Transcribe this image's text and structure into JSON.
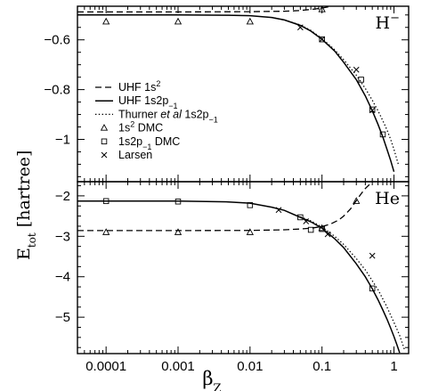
{
  "chart_data": [
    {
      "panel": "H-",
      "label": {
        "text": "H",
        "sup": "−"
      },
      "type": "line",
      "xscale": "log",
      "xlim": [
        4e-05,
        1.6
      ],
      "ylim": [
        -1.17,
        -0.465
      ],
      "yticks": [
        -0.6,
        -0.8,
        -1.0
      ],
      "ytick_labels": [
        "−0.6",
        "−0.8",
        "−1"
      ],
      "series": [
        {
          "name": "UHF 1s²",
          "style": "dashed",
          "x": [
            4e-05,
            0.0001,
            0.001,
            0.01,
            0.03,
            0.05,
            0.08,
            0.1,
            0.13,
            0.16,
            0.2
          ],
          "y": [
            -0.488,
            -0.488,
            -0.488,
            -0.487,
            -0.485,
            -0.482,
            -0.476,
            -0.472,
            -0.466,
            -0.46,
            -0.45
          ]
        },
        {
          "name": "UHF 1s2p₋₁",
          "style": "solid",
          "x": [
            4e-05,
            0.0001,
            0.001,
            0.005,
            0.01,
            0.02,
            0.03,
            0.05,
            0.07,
            0.1,
            0.15,
            0.2,
            0.3,
            0.4,
            0.5,
            0.6,
            0.7,
            0.8,
            0.9,
            1.0
          ],
          "y": [
            -0.5,
            -0.5,
            -0.5,
            -0.501,
            -0.503,
            -0.51,
            -0.52,
            -0.542,
            -0.565,
            -0.598,
            -0.645,
            -0.69,
            -0.76,
            -0.825,
            -0.885,
            -0.94,
            -0.99,
            -1.04,
            -1.085,
            -1.13
          ]
        },
        {
          "name": "Thurner et al 1s2p₋₁",
          "style": "dotted",
          "x": [
            0.02,
            0.03,
            0.05,
            0.07,
            0.1,
            0.15,
            0.2,
            0.3,
            0.4,
            0.5,
            0.6,
            0.7,
            0.8,
            0.9,
            1.0,
            1.15
          ],
          "y": [
            -0.51,
            -0.52,
            -0.54,
            -0.562,
            -0.595,
            -0.64,
            -0.68,
            -0.742,
            -0.795,
            -0.843,
            -0.885,
            -0.925,
            -0.962,
            -1.0,
            -1.04,
            -1.1
          ]
        },
        {
          "name": "1s² DMC",
          "style": "triangle",
          "x": [
            0.0001,
            0.001,
            0.01,
            0.1
          ],
          "y": [
            -0.527,
            -0.527,
            -0.527,
            -0.478
          ]
        },
        {
          "name": "1s2p₋₁ DMC",
          "style": "square",
          "x": [
            0.1,
            0.35,
            0.5,
            0.7
          ],
          "y": [
            -0.598,
            -0.76,
            -0.88,
            -0.98
          ]
        },
        {
          "name": "Larsen",
          "style": "cross",
          "x": [
            0.05,
            0.1,
            0.3,
            0.5
          ],
          "y": [
            -0.55,
            -0.598,
            -0.72,
            -0.883
          ]
        }
      ]
    },
    {
      "panel": "He",
      "label": {
        "text": "He",
        "sup": ""
      },
      "type": "line",
      "xscale": "log",
      "xlim": [
        4e-05,
        1.6
      ],
      "ylim": [
        -5.9,
        -1.65
      ],
      "yticks": [
        -2,
        -3,
        -4,
        -5
      ],
      "ytick_labels": [
        "−2",
        "−3",
        "−4",
        "−5"
      ],
      "xticks": [
        0.0001,
        0.001,
        0.01,
        0.1,
        1
      ],
      "xtick_labels": [
        "0.0001",
        "0.001",
        "0.01",
        "0.1",
        "1"
      ],
      "series": [
        {
          "name": "UHF 1s²",
          "style": "dashed",
          "x": [
            4e-05,
            0.0001,
            0.001,
            0.01,
            0.03,
            0.05,
            0.07,
            0.1,
            0.13,
            0.17,
            0.2,
            0.25,
            0.3,
            0.35,
            0.4,
            0.45,
            0.5
          ],
          "y": [
            -2.86,
            -2.86,
            -2.86,
            -2.855,
            -2.84,
            -2.82,
            -2.8,
            -2.76,
            -2.7,
            -2.6,
            -2.5,
            -2.32,
            -2.12,
            -1.95,
            -1.82,
            -1.73,
            -1.67
          ]
        },
        {
          "name": "UHF 1s2p₋₁",
          "style": "solid",
          "x": [
            4e-05,
            0.0001,
            0.001,
            0.005,
            0.01,
            0.02,
            0.03,
            0.05,
            0.07,
            0.1,
            0.15,
            0.2,
            0.3,
            0.4,
            0.5,
            0.6,
            0.7,
            0.8,
            0.9,
            1.0,
            1.1,
            1.2
          ],
          "y": [
            -2.13,
            -2.13,
            -2.13,
            -2.15,
            -2.18,
            -2.28,
            -2.36,
            -2.53,
            -2.64,
            -2.8,
            -3.06,
            -3.28,
            -3.68,
            -4.0,
            -4.3,
            -4.57,
            -4.82,
            -5.05,
            -5.27,
            -5.48,
            -5.68,
            -5.88
          ]
        },
        {
          "name": "Thurner et al 1s2p₋₁",
          "style": "dotted",
          "x": [
            0.05,
            0.07,
            0.1,
            0.15,
            0.2,
            0.3,
            0.4,
            0.5,
            0.6,
            0.7,
            0.8,
            0.9,
            1.0,
            1.2,
            1.4
          ],
          "y": [
            -2.52,
            -2.62,
            -2.77,
            -3.0,
            -3.2,
            -3.55,
            -3.83,
            -4.1,
            -4.32,
            -4.55,
            -4.75,
            -4.95,
            -5.13,
            -5.45,
            -5.8
          ]
        },
        {
          "name": "1s² DMC",
          "style": "triangle",
          "x": [
            0.0001,
            0.001,
            0.01,
            0.1,
            0.3
          ],
          "y": [
            -2.9,
            -2.9,
            -2.9,
            -2.8,
            -2.13
          ]
        },
        {
          "name": "1s2p₋₁ DMC",
          "style": "square",
          "x": [
            0.0001,
            0.001,
            0.01,
            0.05,
            0.07,
            0.1,
            0.5
          ],
          "y": [
            -2.13,
            -2.14,
            -2.23,
            -2.53,
            -2.84,
            -2.82,
            -4.29
          ]
        },
        {
          "name": "Larsen",
          "style": "cross",
          "x": [
            0.025,
            0.06,
            0.12,
            0.5
          ],
          "y": [
            -2.35,
            -2.63,
            -2.95,
            -3.48
          ]
        }
      ]
    }
  ],
  "axes": {
    "ylabel": "E",
    "ylabel_sub": "tot",
    "ylabel_units": "[hartree]",
    "xlabel": "β",
    "xlabel_sub": "Z"
  },
  "legend": {
    "entries": [
      {
        "style": "dashed",
        "text": "UHF 1s",
        "sup": "2",
        "sub": "",
        "tail": ""
      },
      {
        "style": "solid",
        "text": "UHF 1s2p",
        "sup": "",
        "sub": "−1",
        "tail": ""
      },
      {
        "style": "dotted",
        "text": "Thurner ",
        "italic": "et al",
        "after": " 1s2p",
        "sub": "−1"
      },
      {
        "style": "triangle",
        "text": "1s",
        "sup": "2",
        "sub": "",
        "tail": " DMC"
      },
      {
        "style": "square",
        "text": "1s2p",
        "sup": "",
        "sub": "−1",
        "tail": " DMC"
      },
      {
        "style": "cross",
        "text": "Larsen",
        "sup": "",
        "sub": "",
        "tail": ""
      }
    ]
  }
}
